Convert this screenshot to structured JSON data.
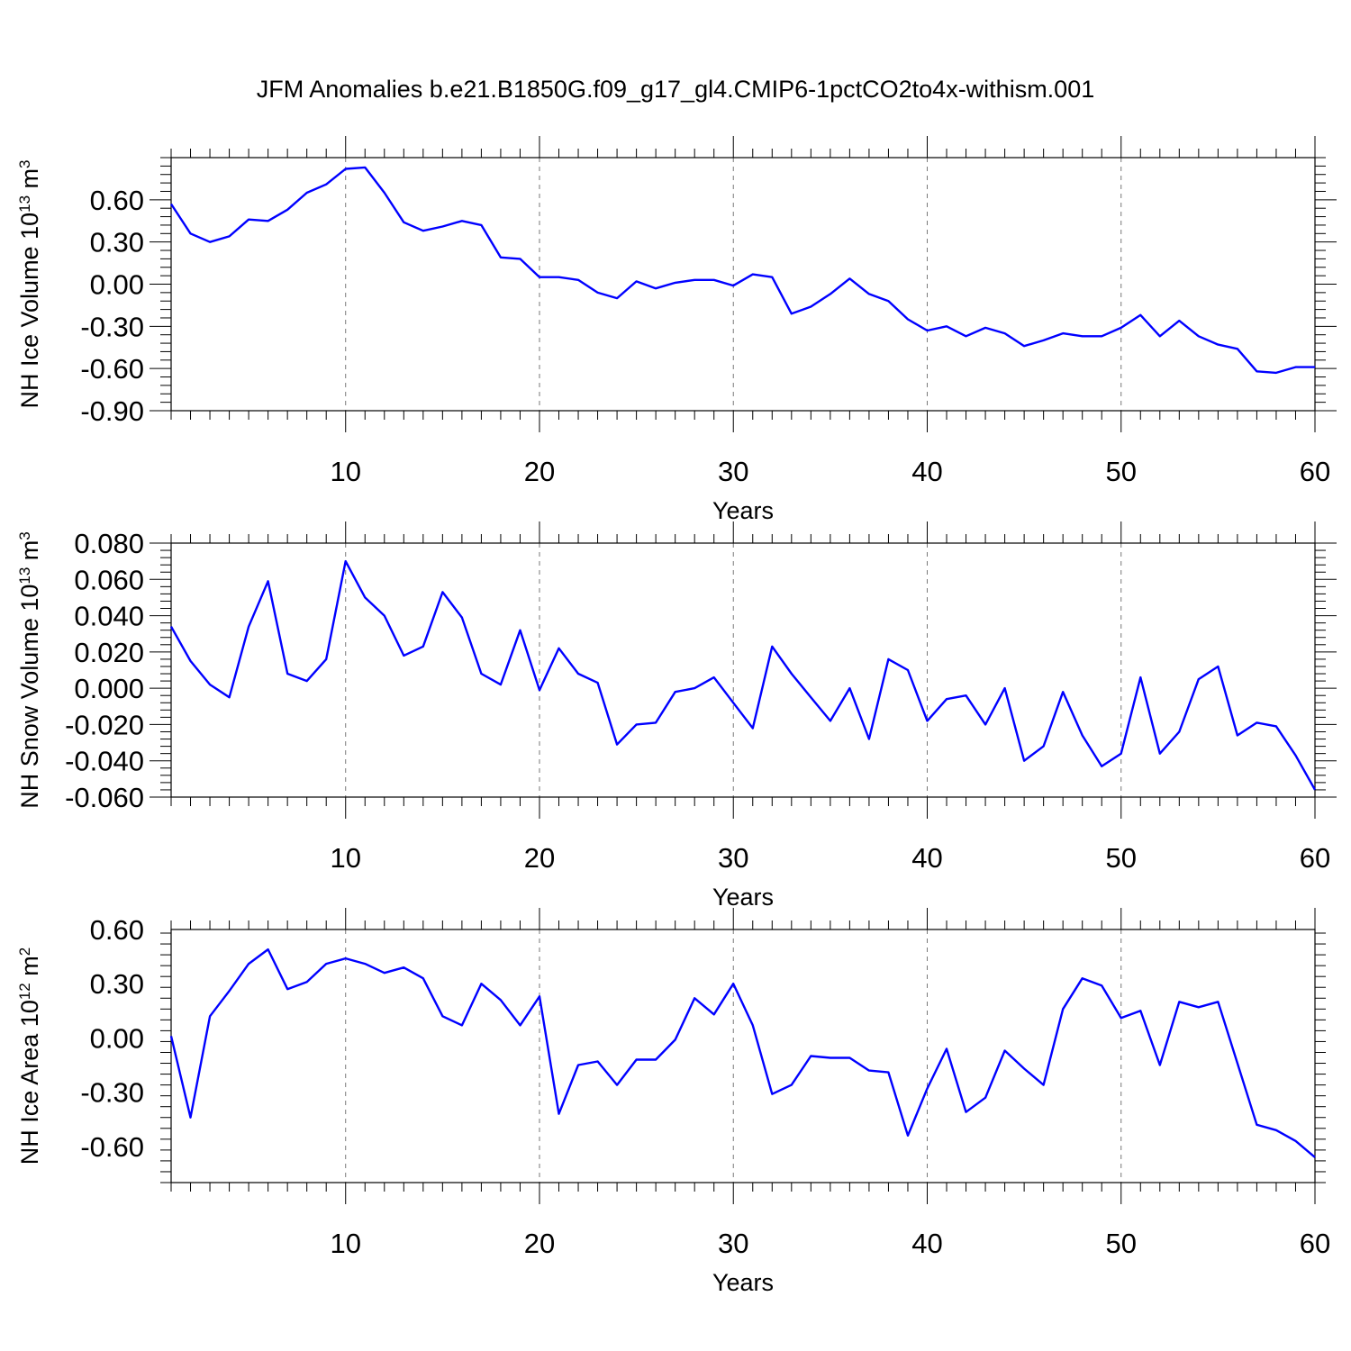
{
  "title": "JFM Anomalies b.e21.B1850G.f09_g17_gl4.CMIP6-1pctCO2to4x-withism.001",
  "colors": {
    "line": "#0000ff",
    "axis": "#000000",
    "grid": "#777777"
  },
  "chart_data": [
    {
      "type": "line",
      "ylabel_main": "NH Ice Volume 10",
      "ylabel_exp": "13",
      "ylabel_unit": " m",
      "ylabel_unit_exp": "3",
      "xlabel": "Years",
      "xlim": [
        1,
        60
      ],
      "ylim": [
        -0.9,
        0.9
      ],
      "yticks": [
        0.6,
        0.3,
        0.0,
        -0.3,
        -0.6,
        -0.9
      ],
      "ytick_labels": [
        "0.60",
        "0.30",
        "0.00",
        "-0.30",
        "-0.60",
        "-0.90"
      ],
      "xticks": [
        10,
        20,
        30,
        40,
        50,
        60
      ],
      "xtick_labels": [
        "10",
        "20",
        "30",
        "40",
        "50",
        "60"
      ],
      "grid": "vertical dashed at major x ticks",
      "series": [
        {
          "x": [
            1,
            2,
            3,
            4,
            5,
            6,
            7,
            8,
            9,
            10,
            11,
            12,
            13,
            14,
            15,
            16,
            17,
            18,
            19,
            20,
            21,
            22,
            23,
            24,
            25,
            26,
            27,
            28,
            29,
            30,
            31,
            32,
            33,
            34,
            35,
            36,
            37,
            38,
            39,
            40,
            41,
            42,
            43,
            44,
            45,
            46,
            47,
            48,
            49,
            50,
            51,
            52,
            53,
            54,
            55,
            56,
            57,
            58,
            59,
            60
          ],
          "values": [
            0.57,
            0.36,
            0.3,
            0.34,
            0.46,
            0.45,
            0.53,
            0.65,
            0.71,
            0.82,
            0.83,
            0.65,
            0.44,
            0.38,
            0.41,
            0.45,
            0.42,
            0.19,
            0.18,
            0.05,
            0.05,
            0.03,
            -0.06,
            -0.1,
            0.02,
            -0.03,
            0.01,
            0.03,
            0.03,
            -0.01,
            0.07,
            0.05,
            -0.21,
            -0.16,
            -0.07,
            0.04,
            -0.07,
            -0.12,
            -0.25,
            -0.33,
            -0.3,
            -0.37,
            -0.31,
            -0.35,
            -0.44,
            -0.4,
            -0.35,
            -0.37,
            -0.37,
            -0.31,
            -0.22,
            -0.37,
            -0.26,
            -0.37,
            -0.43,
            -0.46,
            -0.62,
            -0.63,
            -0.59,
            -0.59
          ]
        }
      ]
    },
    {
      "type": "line",
      "ylabel_main": "NH Snow Volume 10",
      "ylabel_exp": "13",
      "ylabel_unit": " m",
      "ylabel_unit_exp": "3",
      "xlabel": "Years",
      "xlim": [
        1,
        60
      ],
      "ylim": [
        -0.06,
        0.08
      ],
      "yticks": [
        0.08,
        0.06,
        0.04,
        0.02,
        0.0,
        -0.02,
        -0.04,
        -0.06
      ],
      "ytick_labels": [
        "0.080",
        "0.060",
        "0.040",
        "0.020",
        "0.000",
        "-0.020",
        "-0.040",
        "-0.060"
      ],
      "xticks": [
        10,
        20,
        30,
        40,
        50,
        60
      ],
      "xtick_labels": [
        "10",
        "20",
        "30",
        "40",
        "50",
        "60"
      ],
      "grid": "vertical dashed at major x ticks",
      "series": [
        {
          "x": [
            1,
            2,
            3,
            4,
            5,
            6,
            7,
            8,
            9,
            10,
            11,
            12,
            13,
            14,
            15,
            16,
            17,
            18,
            19,
            20,
            21,
            22,
            23,
            24,
            25,
            26,
            27,
            28,
            29,
            30,
            31,
            32,
            33,
            34,
            35,
            36,
            37,
            38,
            39,
            40,
            41,
            42,
            43,
            44,
            45,
            46,
            47,
            48,
            49,
            50,
            51,
            52,
            53,
            54,
            55,
            56,
            57,
            58,
            59,
            60
          ],
          "values": [
            0.034,
            0.015,
            0.002,
            -0.005,
            0.034,
            0.059,
            0.008,
            0.004,
            0.016,
            0.07,
            0.05,
            0.04,
            0.018,
            0.023,
            0.053,
            0.039,
            0.008,
            0.002,
            0.032,
            -0.001,
            0.022,
            0.008,
            0.003,
            -0.031,
            -0.02,
            -0.019,
            -0.002,
            0.0,
            0.006,
            -0.008,
            -0.022,
            0.023,
            0.008,
            -0.005,
            -0.018,
            0.0,
            -0.028,
            0.016,
            0.01,
            -0.018,
            -0.006,
            -0.004,
            -0.02,
            0.0,
            -0.04,
            -0.032,
            -0.002,
            -0.026,
            -0.043,
            -0.036,
            0.006,
            -0.036,
            -0.024,
            0.005,
            0.012,
            -0.026,
            -0.019,
            -0.021,
            -0.037,
            -0.056
          ]
        }
      ]
    },
    {
      "type": "line",
      "ylabel_main": "NH Ice Area 10",
      "ylabel_exp": "12",
      "ylabel_unit": " m",
      "ylabel_unit_exp": "2",
      "xlabel": "Years",
      "xlim": [
        1,
        60
      ],
      "ylim": [
        -0.8,
        0.6
      ],
      "yticks": [
        0.6,
        0.3,
        0.0,
        -0.3,
        -0.6
      ],
      "ytick_labels": [
        "0.60",
        "0.30",
        "0.00",
        "-0.30",
        "-0.60"
      ],
      "xticks": [
        10,
        20,
        30,
        40,
        50,
        60
      ],
      "xtick_labels": [
        "10",
        "20",
        "30",
        "40",
        "50",
        "60"
      ],
      "grid": "vertical dashed at major x ticks",
      "series": [
        {
          "x": [
            1,
            2,
            3,
            4,
            5,
            6,
            7,
            8,
            9,
            10,
            11,
            12,
            13,
            14,
            15,
            16,
            17,
            18,
            19,
            20,
            21,
            22,
            23,
            24,
            25,
            26,
            27,
            28,
            29,
            30,
            31,
            32,
            33,
            34,
            35,
            36,
            37,
            38,
            39,
            40,
            41,
            42,
            43,
            44,
            45,
            46,
            47,
            48,
            49,
            50,
            51,
            52,
            53,
            54,
            55,
            56,
            57,
            58,
            59,
            60
          ],
          "values": [
            0.01,
            -0.44,
            0.12,
            0.26,
            0.41,
            0.49,
            0.27,
            0.31,
            0.41,
            0.44,
            0.41,
            0.36,
            0.39,
            0.33,
            0.12,
            0.07,
            0.3,
            0.21,
            0.07,
            0.23,
            -0.42,
            -0.15,
            -0.13,
            -0.26,
            -0.12,
            -0.12,
            -0.01,
            0.22,
            0.13,
            0.3,
            0.07,
            -0.31,
            -0.26,
            -0.1,
            -0.11,
            -0.11,
            -0.18,
            -0.19,
            -0.54,
            -0.28,
            -0.06,
            -0.41,
            -0.33,
            -0.07,
            -0.17,
            -0.26,
            0.16,
            0.33,
            0.29,
            0.11,
            0.15,
            -0.15,
            0.2,
            0.17,
            0.2,
            -0.14,
            -0.48,
            -0.51,
            -0.57,
            -0.66
          ]
        }
      ]
    }
  ]
}
